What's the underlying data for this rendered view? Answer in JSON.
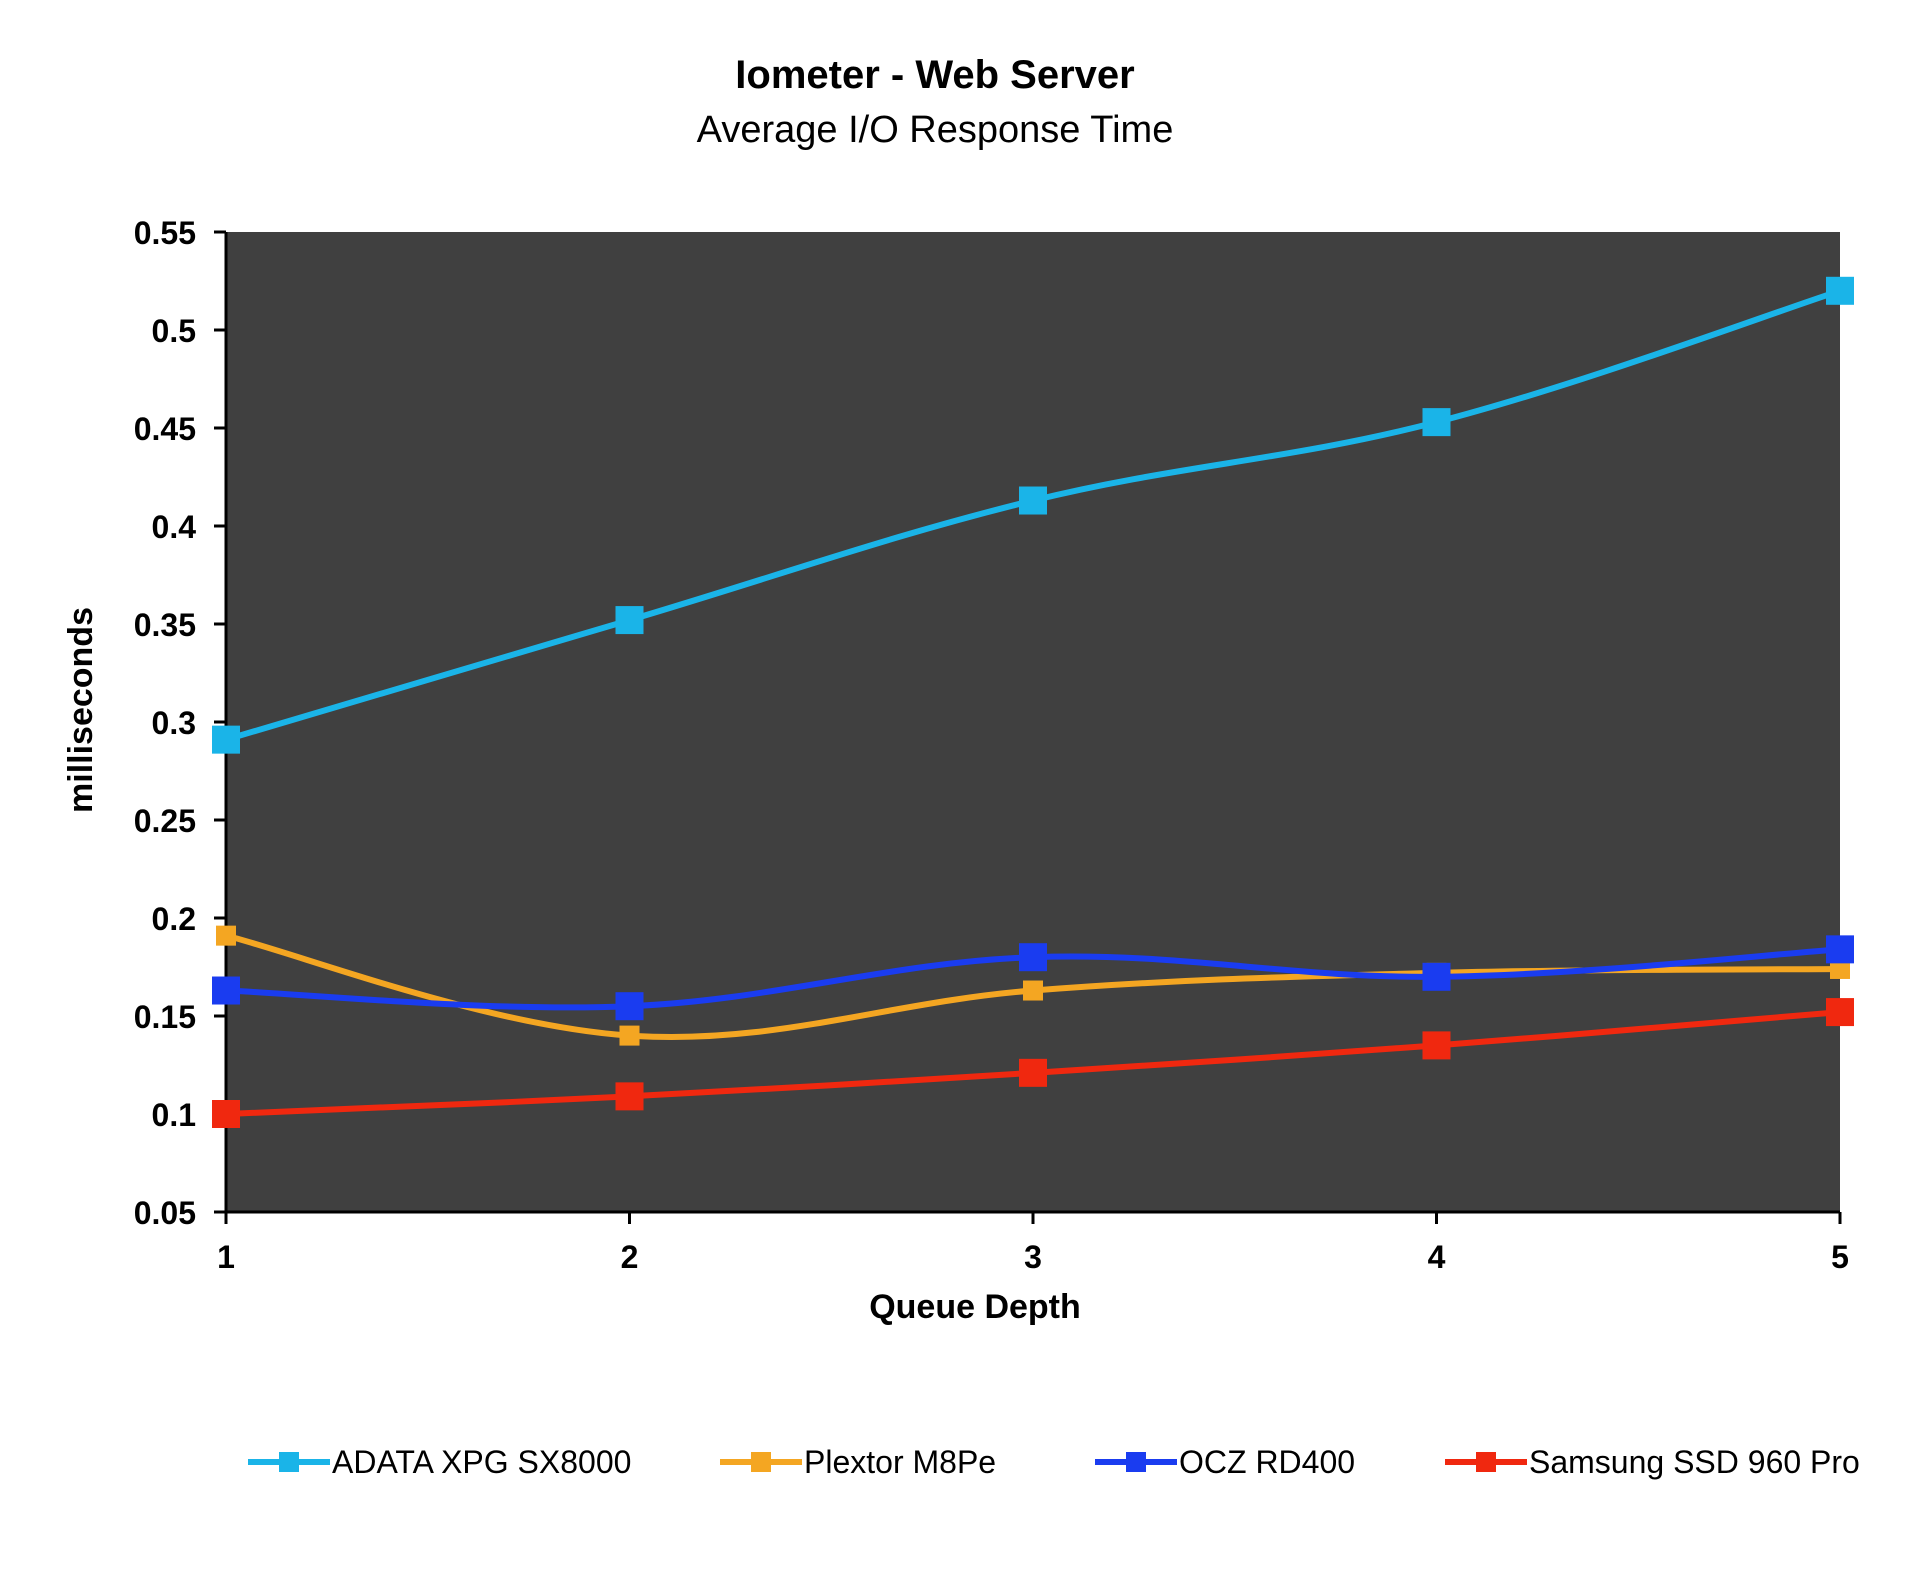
{
  "chart_data": {
    "type": "line",
    "title": "Iometer - Web Server",
    "subtitle": "Average I/O Response Time",
    "xlabel": "Queue Depth",
    "ylabel": "milliseconds",
    "x": [
      1,
      2,
      3,
      4,
      5
    ],
    "x_tick_labels": [
      "1",
      "2",
      "3",
      "4",
      "5"
    ],
    "ylim": [
      0.05,
      0.55
    ],
    "y_tick_labels": [
      "0.05",
      "0.1",
      "0.15",
      "0.2",
      "0.25",
      "0.3",
      "0.35",
      "0.4",
      "0.45",
      "0.5",
      "0.55"
    ],
    "grid": false,
    "plot_background": "#404040",
    "legend_position": "bottom",
    "series": [
      {
        "name": "ADATA XPG SX8000",
        "color": "#1ab4e8",
        "values": [
          0.291,
          0.352,
          0.413,
          0.453,
          0.52
        ]
      },
      {
        "name": "Plextor M8Pe",
        "color": "#f4a622",
        "values": [
          0.191,
          0.14,
          0.163,
          0.172,
          0.174
        ]
      },
      {
        "name": "OCZ RD400",
        "color": "#1a3cf0",
        "values": [
          0.163,
          0.155,
          0.18,
          0.17,
          0.184
        ]
      },
      {
        "name": "Samsung SSD 960 Pro",
        "color": "#f0280f",
        "values": [
          0.1,
          0.109,
          0.121,
          0.135,
          0.152
        ]
      }
    ]
  }
}
